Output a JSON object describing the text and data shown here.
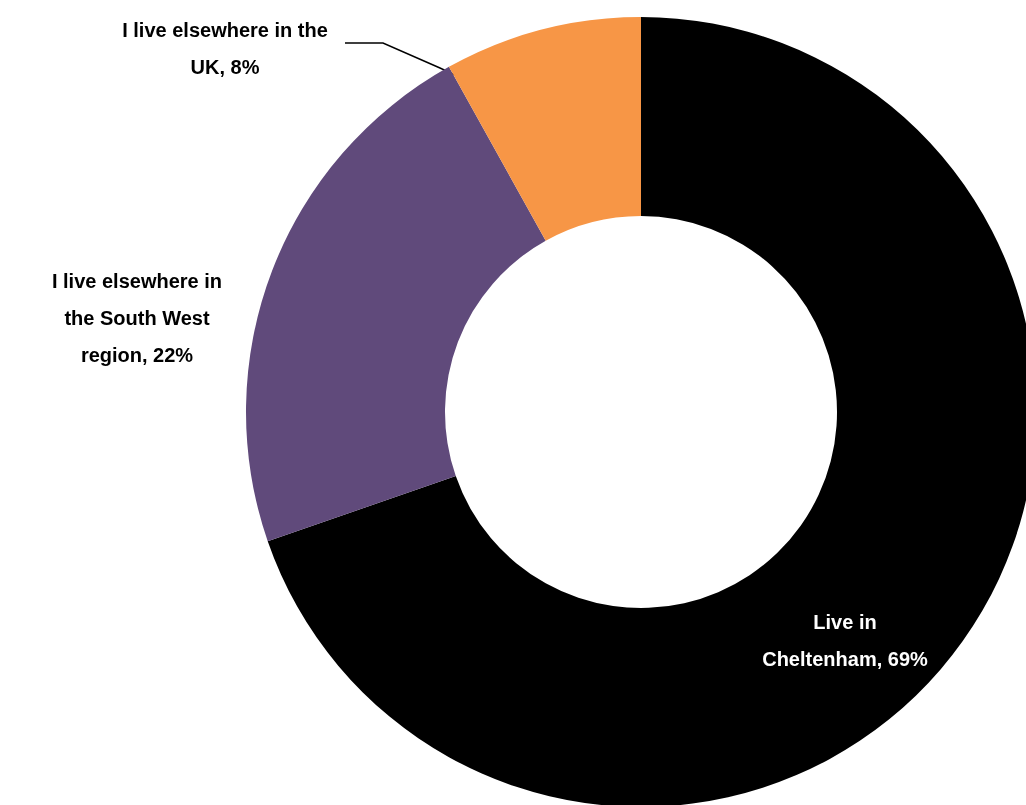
{
  "chart_data": {
    "type": "donut",
    "categories": [
      "Live in Cheltenham",
      "I live elsewhere in the South West region",
      "I live elsewhere in the UK"
    ],
    "values": [
      69,
      22,
      8
    ],
    "value_labels": [
      "69%",
      "22%",
      "8%"
    ],
    "colors": [
      "#000000",
      "#604a7b",
      "#f79646"
    ],
    "legend": false
  }
}
